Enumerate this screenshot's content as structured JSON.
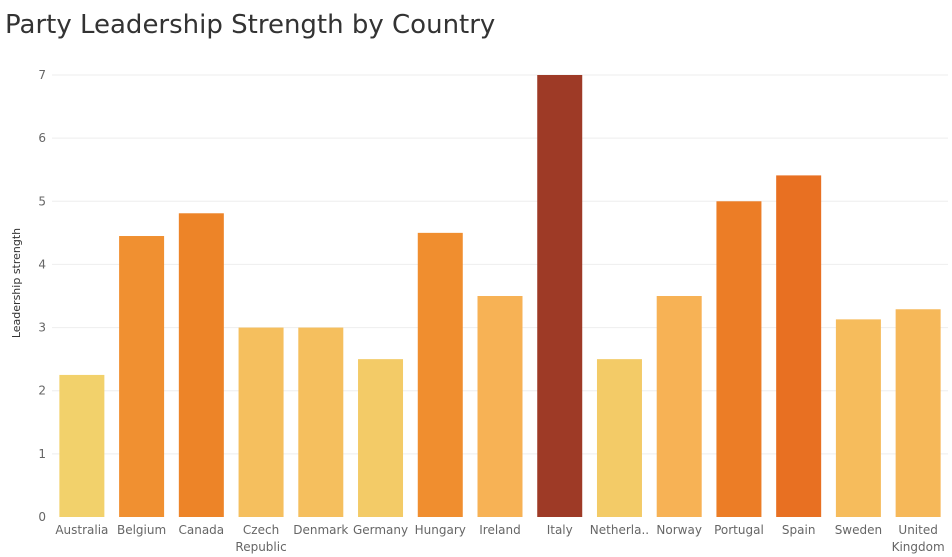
{
  "chart_data": {
    "type": "bar",
    "title": "Party Leadership Strength by Country",
    "xlabel": "",
    "ylabel": "Leadership strength",
    "ylim": [
      0,
      7
    ],
    "yticks": [
      0,
      1,
      2,
      3,
      4,
      5,
      6,
      7
    ],
    "grid": true,
    "categories": [
      "Australia",
      "Belgium",
      "Canada",
      "Czech Republic",
      "Denmark",
      "Germany",
      "Hungary",
      "Ireland",
      "Italy",
      "Netherla..",
      "Norway",
      "Portugal",
      "Spain",
      "Sweden",
      "United Kingdom"
    ],
    "category_label_lines": [
      [
        "Australia"
      ],
      [
        "Belgium"
      ],
      [
        "Canada"
      ],
      [
        "Czech",
        "Republic"
      ],
      [
        "Denmark"
      ],
      [
        "Germany"
      ],
      [
        "Hungary"
      ],
      [
        "Ireland"
      ],
      [
        "Italy"
      ],
      [
        "Netherla.."
      ],
      [
        "Norway"
      ],
      [
        "Portugal"
      ],
      [
        "Spain"
      ],
      [
        "Sweden"
      ],
      [
        "United",
        "Kingdom"
      ]
    ],
    "values": [
      2.25,
      4.45,
      4.81,
      3.0,
      3.0,
      2.5,
      4.5,
      3.5,
      7.0,
      2.5,
      3.5,
      5.0,
      5.41,
      3.13,
      3.29
    ],
    "color_scale": {
      "type": "sequential",
      "stops": [
        "#f2d16b",
        "#f7b457",
        "#ef8a2a",
        "#e5621e",
        "#9e3a26"
      ]
    },
    "colors": {
      "grid": "#eeeeee",
      "axis_text": "#666666"
    }
  }
}
